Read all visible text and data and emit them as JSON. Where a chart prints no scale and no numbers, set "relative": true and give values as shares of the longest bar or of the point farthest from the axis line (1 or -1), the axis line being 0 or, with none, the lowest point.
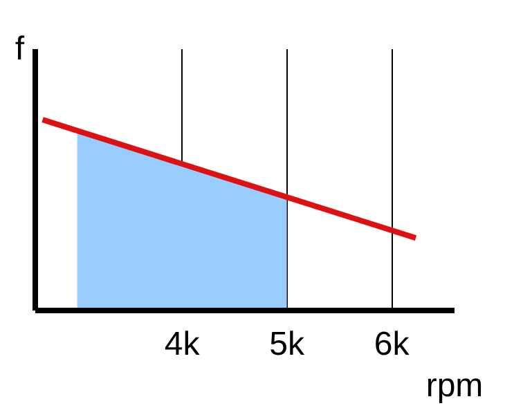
{
  "chart_data": {
    "type": "line",
    "xlabel": "rpm",
    "ylabel": "f",
    "relative": true,
    "xlim": [
      2.6,
      6.6
    ],
    "xticks": [
      {
        "value": 4,
        "label": "4k"
      },
      {
        "value": 5,
        "label": "5k"
      },
      {
        "value": 6,
        "label": "6k"
      }
    ],
    "grid": "x",
    "series": [
      {
        "type": "area",
        "color": "#99ccff",
        "x": [
          3,
          5
        ],
        "values": [
          0.94,
          0.61
        ]
      },
      {
        "color": "#dd1111",
        "x": [
          2.67,
          6.23
        ],
        "values": [
          1,
          0.38
        ]
      }
    ]
  }
}
